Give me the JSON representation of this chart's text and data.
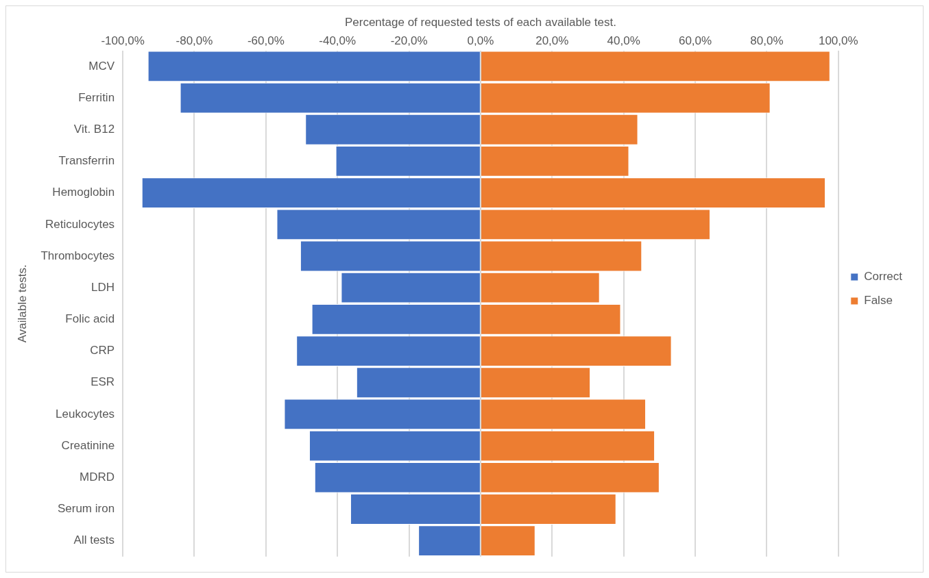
{
  "chart_data": {
    "type": "bar",
    "orientation": "horizontal",
    "stacked": true,
    "xlabel": "Percentage of requested tests of each available test.",
    "ylabel": "Available tests.",
    "categories": [
      "MCV",
      "Ferritin",
      "Vit. B12",
      "Transferrin",
      "Hemoglobin",
      "Reticulocytes",
      "Thrombocytes",
      "LDH",
      "Folic acid",
      "CRP",
      "ESR",
      "Leukocytes",
      "Creatinine",
      "MDRD",
      "Serum iron",
      "All tests"
    ],
    "series": [
      {
        "name": "Correct",
        "color": "#4472c4",
        "values": [
          -93,
          -84,
          -49,
          -40.5,
          -94.7,
          -57,
          -50.4,
          -39,
          -47.2,
          -51.5,
          -34.7,
          -54.9,
          -47.9,
          -46.4,
          -36.4,
          -17.4
        ]
      },
      {
        "name": "False",
        "color": "#ed7d31",
        "values": [
          97.7,
          81,
          44,
          41.5,
          96.4,
          64.2,
          45.1,
          33.3,
          39.2,
          53.4,
          30.7,
          46.2,
          48.7,
          50,
          37.9,
          15.3
        ]
      }
    ],
    "xlim": [
      -100,
      100
    ],
    "xticks": [
      {
        "value": -100,
        "label": "-100,0%"
      },
      {
        "value": -80,
        "label": "-80,0%"
      },
      {
        "value": -60,
        "label": "-60,0%"
      },
      {
        "value": -40,
        "label": "-40,0%"
      },
      {
        "value": -20,
        "label": "-20,0%"
      },
      {
        "value": 0,
        "label": "0,0%"
      },
      {
        "value": 20,
        "label": "20,0%"
      },
      {
        "value": 40,
        "label": "40,0%"
      },
      {
        "value": 60,
        "label": "60,0%"
      },
      {
        "value": 80,
        "label": "80,0%"
      },
      {
        "value": 100,
        "label": "100,0%"
      }
    ],
    "grid": "x",
    "legend": "right"
  }
}
